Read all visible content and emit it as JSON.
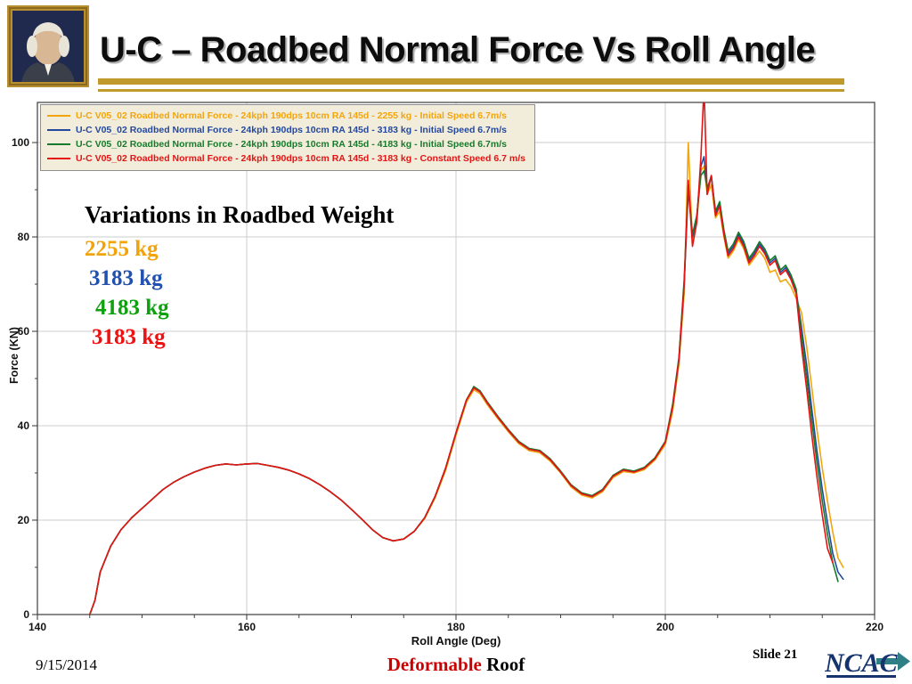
{
  "slide": {
    "title": "U-C – Roadbed Normal Force Vs Roll Angle",
    "annotation": {
      "heading": "Variations in Roadbed Weight",
      "items": [
        {
          "label": "2255 kg",
          "color": "#F0A30A"
        },
        {
          "label": "3183 kg",
          "color": "#2050B0"
        },
        {
          "label": "4183 kg",
          "color": "#0EA00E"
        },
        {
          "label": "3183 kg",
          "color": "#EE1111"
        }
      ]
    },
    "footer": {
      "date": "9/15/2014",
      "caption_red": "Deformable",
      "caption_black": " Roof",
      "slide_number": "Slide 21",
      "logo_text": "NCAC"
    },
    "accent_gold": "#C19A2E"
  },
  "chart_data": {
    "type": "line",
    "title": "",
    "xlabel": "Roll Angle (Deg)",
    "ylabel": "Force (KN)",
    "xlim": [
      140,
      220
    ],
    "ylim": [
      0,
      100
    ],
    "xticks": [
      140,
      160,
      180,
      200,
      220
    ],
    "yticks": [
      0,
      20,
      40,
      60,
      80,
      100
    ],
    "grid": true,
    "legend_position": "top-left",
    "x": [
      145,
      145.5,
      146,
      147,
      148,
      149,
      150,
      151,
      152,
      153,
      154,
      155,
      156,
      157,
      158,
      159,
      160,
      161,
      162,
      163,
      164,
      165,
      166,
      167,
      168,
      169,
      170,
      171,
      172,
      173,
      174,
      175,
      176,
      177,
      178,
      179,
      180,
      181,
      181.7,
      182.3,
      183,
      184,
      185,
      186,
      187,
      188,
      189,
      190,
      191,
      192,
      193,
      194,
      195,
      196,
      197,
      198,
      199,
      200,
      200.7,
      201.3,
      201.8,
      202.2,
      202.6,
      203,
      203.4,
      203.7,
      204,
      204.4,
      204.8,
      205.2,
      205.6,
      206,
      206.5,
      207,
      207.5,
      208,
      208.5,
      209,
      209.5,
      210,
      210.5,
      211,
      211.5,
      212,
      212.5,
      213,
      213.5,
      214,
      214.5,
      215,
      215.5,
      216,
      216.5,
      217
    ],
    "series": [
      {
        "name": "U-C V05_02 Roadbed Normal Force - 24kph 190dps 10cm RA 145d - 2255 kg - Initial Speed 6.7m/s",
        "color": "#F2A50C",
        "y": [
          0,
          3,
          9,
          14.5,
          18,
          20.5,
          22.5,
          24.5,
          26.5,
          28,
          29.2,
          30.2,
          31,
          31.6,
          31.9,
          31.7,
          31.9,
          32,
          31.6,
          31.2,
          30.6,
          29.8,
          28.8,
          27.5,
          26,
          24.3,
          22.3,
          20.2,
          18,
          16.3,
          15.6,
          16,
          17.6,
          20.3,
          24.7,
          30.5,
          38,
          45,
          47.6,
          46.8,
          44.4,
          41.5,
          38.7,
          36.2,
          34.7,
          34.3,
          32.5,
          30,
          27,
          25.3,
          24.7,
          26,
          29,
          30.3,
          30,
          30.7,
          32.7,
          36,
          43,
          53,
          68,
          100,
          79,
          83,
          94,
          95,
          89,
          91,
          84,
          85.5,
          80,
          75.5,
          77,
          79.5,
          77.5,
          74,
          75.5,
          77,
          75.5,
          72.5,
          73,
          70.5,
          71,
          69.5,
          67,
          64,
          57,
          48,
          39,
          31,
          24,
          17.5,
          12,
          10
        ]
      },
      {
        "name": "U-C V05_02 Roadbed Normal Force - 24kph 190dps 10cm RA 145d - 3183 kg - Initial Speed 6.7m/s",
        "color": "#24489E",
        "y": [
          0,
          3,
          9,
          14.5,
          18,
          20.5,
          22.5,
          24.5,
          26.5,
          28,
          29.2,
          30.2,
          31,
          31.6,
          31.9,
          31.7,
          31.9,
          32,
          31.6,
          31.2,
          30.6,
          29.8,
          28.8,
          27.5,
          26,
          24.3,
          22.3,
          20.2,
          18,
          16.3,
          15.6,
          16,
          17.6,
          20.5,
          25,
          31,
          38.5,
          45.5,
          48,
          47.2,
          44.8,
          41.8,
          39,
          36.5,
          35,
          34.6,
          32.8,
          30.2,
          27.3,
          25.6,
          25,
          26.3,
          29.3,
          30.6,
          30.2,
          31,
          33,
          36.5,
          44,
          54,
          70,
          90,
          80,
          84,
          95,
          97,
          90,
          93,
          85,
          87,
          81,
          76.5,
          78,
          80.5,
          78.5,
          75,
          76.5,
          78.5,
          77,
          74.5,
          75.5,
          72.5,
          73.5,
          71.5,
          68.5,
          61,
          53,
          43.5,
          34.5,
          26.5,
          19.5,
          13,
          9,
          7.5
        ]
      },
      {
        "name": "U-C V05_02 Roadbed Normal Force - 24kph 190dps 10cm RA 145d - 4183 kg - Initial Speed 6.7m/s",
        "color": "#177A2C",
        "y": [
          0,
          3,
          9,
          14.5,
          18,
          20.5,
          22.5,
          24.5,
          26.5,
          28,
          29.2,
          30.2,
          31,
          31.6,
          31.9,
          31.7,
          31.9,
          32,
          31.6,
          31.2,
          30.6,
          29.8,
          28.8,
          27.5,
          26,
          24.3,
          22.3,
          20.2,
          18,
          16.3,
          15.6,
          16,
          17.6,
          20.5,
          25,
          31,
          38.5,
          45.5,
          48.3,
          47.4,
          45,
          42,
          39.2,
          36.7,
          35.2,
          34.8,
          33,
          30.4,
          27.5,
          25.8,
          25.2,
          26.5,
          29.5,
          30.8,
          30.4,
          31.2,
          33.2,
          36.7,
          44.5,
          54.5,
          71,
          91,
          80.5,
          84.5,
          93,
          94,
          90.5,
          92.5,
          85.5,
          87.5,
          81.5,
          77,
          78.5,
          81,
          79,
          75.5,
          77,
          79,
          77.5,
          75,
          76,
          73,
          74,
          72,
          69,
          59,
          50.5,
          41,
          32,
          24,
          17,
          11,
          7,
          null
        ]
      },
      {
        "name": "U-C V05_02 Roadbed Normal Force - 24kph 190dps 10cm RA 145d - 3183 kg - Constant Speed 6.7 m/s",
        "color": "#E41414",
        "y": [
          0,
          3,
          9,
          14.5,
          18,
          20.5,
          22.5,
          24.5,
          26.5,
          28,
          29.2,
          30.2,
          31,
          31.6,
          31.9,
          31.7,
          31.9,
          32,
          31.6,
          31.2,
          30.6,
          29.8,
          28.8,
          27.5,
          26,
          24.3,
          22.3,
          20.2,
          18,
          16.3,
          15.6,
          16,
          17.6,
          20.5,
          25,
          31,
          38.5,
          45.5,
          48,
          47.2,
          44.8,
          41.8,
          39,
          36.5,
          35,
          34.6,
          32.8,
          30.2,
          27.3,
          25.6,
          25,
          26.3,
          29.3,
          30.6,
          30.2,
          31,
          33,
          36.5,
          44,
          54,
          70,
          92,
          78,
          83,
          97,
          112,
          89,
          93,
          84.5,
          86.5,
          80.5,
          76,
          77.5,
          80,
          78,
          74.5,
          76,
          78,
          76.5,
          74,
          75,
          72,
          73,
          71,
          68,
          57,
          48,
          38,
          29,
          21,
          14,
          11,
          null,
          null
        ]
      }
    ]
  }
}
